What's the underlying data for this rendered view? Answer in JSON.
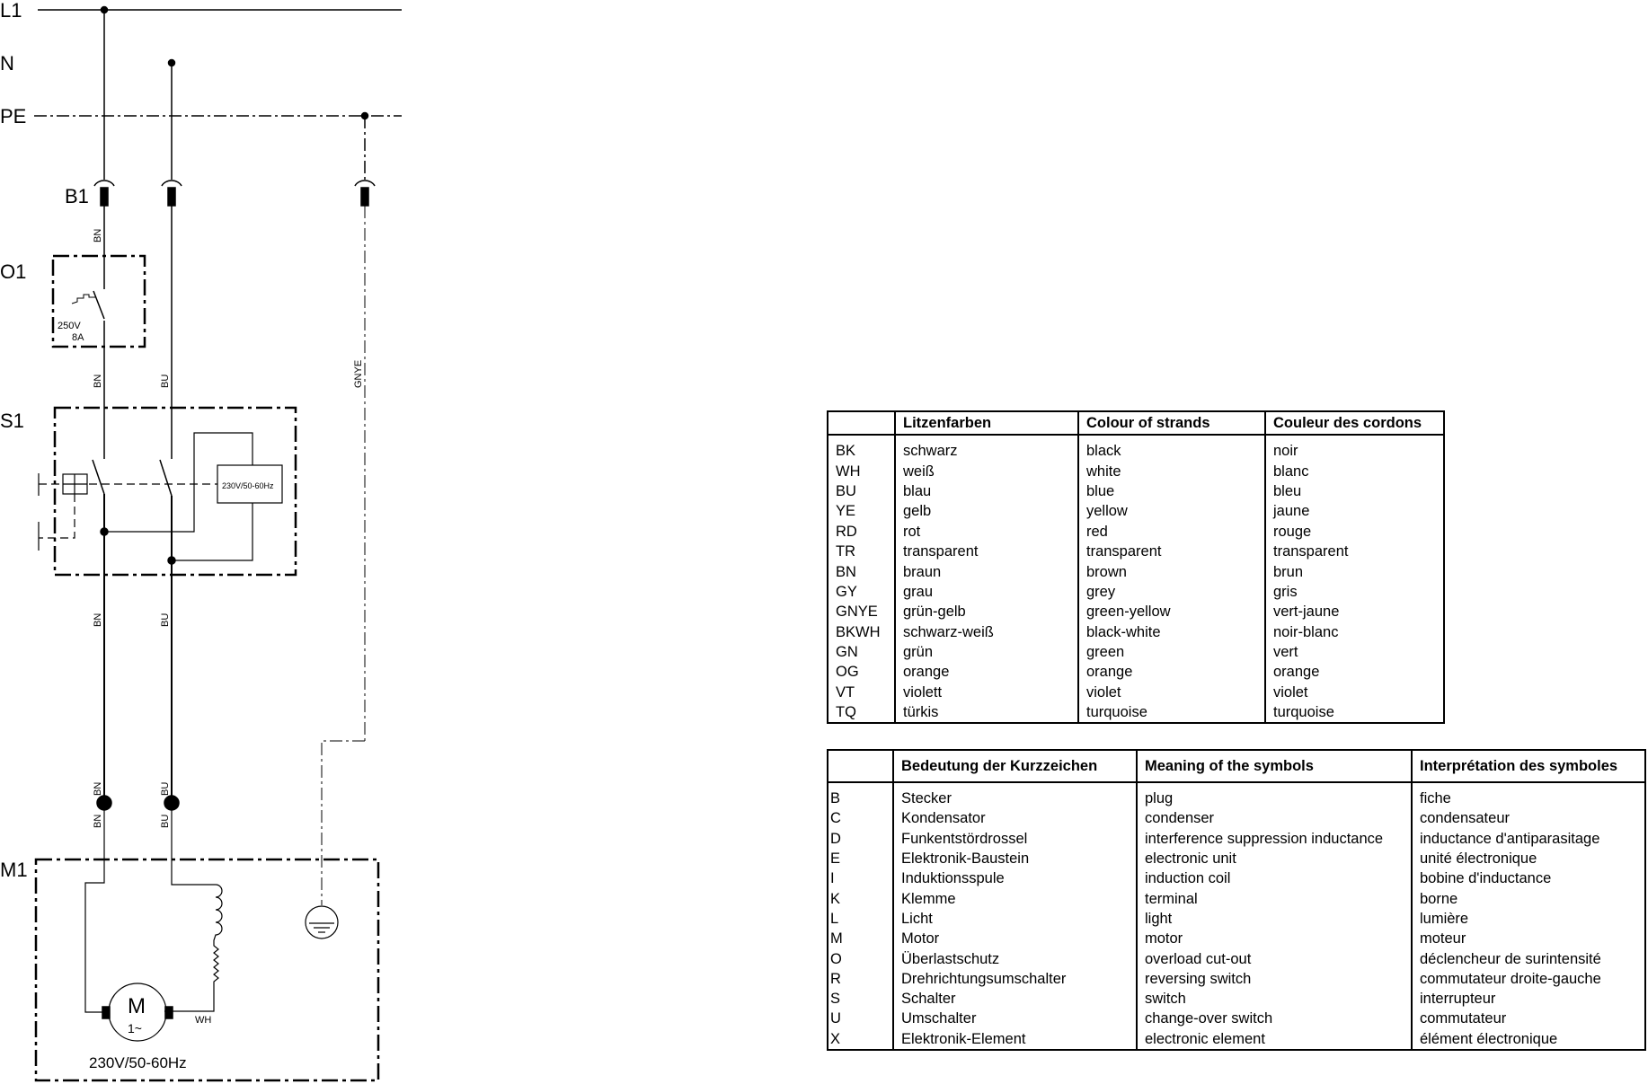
{
  "diagram": {
    "bus": {
      "l1": "L1",
      "n": "N",
      "pe": "PE"
    },
    "components": {
      "b1": "B1",
      "o1": "O1",
      "s1": "S1",
      "m1": "M1"
    },
    "overload": {
      "voltage": "250V",
      "current": "8A"
    },
    "coil_rating": "230V/50-60Hz",
    "motor": {
      "symbol": "M",
      "phase": "1~",
      "rating": "230V/50-60Hz",
      "wire_wh": "WH"
    },
    "wire_labels": {
      "bn": "BN",
      "bu": "BU",
      "gnye": "GNYE"
    }
  },
  "colour_table": {
    "headers": [
      "",
      "Litzenfarben",
      "Colour of strands",
      "Couleur des cordons"
    ],
    "rows": [
      [
        "BK",
        "schwarz",
        "black",
        "noir"
      ],
      [
        "WH",
        "weiß",
        "white",
        "blanc"
      ],
      [
        "BU",
        "blau",
        "blue",
        "bleu"
      ],
      [
        "YE",
        "gelb",
        "yellow",
        "jaune"
      ],
      [
        "RD",
        "rot",
        "red",
        "rouge"
      ],
      [
        "TR",
        "transparent",
        "transparent",
        "transparent"
      ],
      [
        "BN",
        "braun",
        "brown",
        "brun"
      ],
      [
        "GY",
        "grau",
        "grey",
        "gris"
      ],
      [
        "GNYE",
        "grün-gelb",
        "green-yellow",
        "vert-jaune"
      ],
      [
        "BKWH",
        "schwarz-weiß",
        "black-white",
        "noir-blanc"
      ],
      [
        "GN",
        "grün",
        "green",
        "vert"
      ],
      [
        "OG",
        "orange",
        "orange",
        "orange"
      ],
      [
        "VT",
        "violett",
        "violet",
        "violet"
      ],
      [
        "TQ",
        "türkis",
        "turquoise",
        "turquoise"
      ]
    ]
  },
  "symbol_table": {
    "headers": [
      "",
      "Bedeutung der Kurzzeichen",
      "Meaning of the symbols",
      "Interprétation des symboles"
    ],
    "rows": [
      [
        "B",
        "Stecker",
        "plug",
        "fiche"
      ],
      [
        "C",
        "Kondensator",
        "condenser",
        "condensateur"
      ],
      [
        "D",
        "Funkentstördrossel",
        "interference suppression inductance",
        "inductance d'antiparasitage"
      ],
      [
        "E",
        "Elektronik-Baustein",
        "electronic unit",
        "unité électronique"
      ],
      [
        "I",
        "Induktionsspule",
        "induction coil",
        "bobine d'inductance"
      ],
      [
        "K",
        "Klemme",
        "terminal",
        "borne"
      ],
      [
        "L",
        "Licht",
        "light",
        "lumière"
      ],
      [
        "M",
        "Motor",
        "motor",
        "moteur"
      ],
      [
        "O",
        "Überlastschutz",
        "overload cut-out",
        "déclencheur de surintensité"
      ],
      [
        "R",
        "Drehrichtungsumschalter",
        "reversing switch",
        "commutateur droite-gauche"
      ],
      [
        "S",
        "Schalter",
        "switch",
        "interrupteur"
      ],
      [
        "U",
        "Umschalter",
        "change-over switch",
        "commutateur"
      ],
      [
        "X",
        "Elektronik-Element",
        "electronic element",
        "élément électronique"
      ]
    ]
  }
}
